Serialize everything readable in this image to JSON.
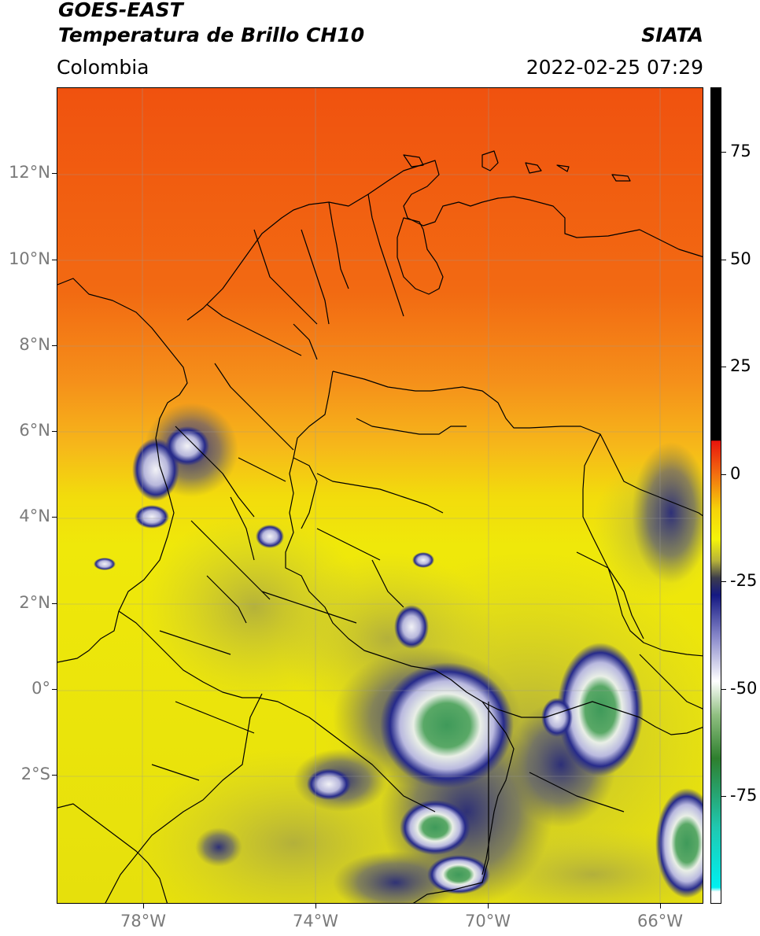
{
  "header": {
    "title_line1": "GOES-EAST",
    "title_line2": "Temperatura de Brillo CH10",
    "region": "Colombia",
    "brand": "SIATA",
    "timestamp": "2022-02-25 07:29"
  },
  "map": {
    "lon_range": [
      -80,
      -65
    ],
    "lat_range": [
      -5,
      14
    ],
    "lat_ticks": [
      {
        "lat": 12,
        "label": "12°N"
      },
      {
        "lat": 10,
        "label": "10°N"
      },
      {
        "lat": 8,
        "label": "8°N"
      },
      {
        "lat": 6,
        "label": "6°N"
      },
      {
        "lat": 4,
        "label": "4°N"
      },
      {
        "lat": 2,
        "label": "2°N"
      },
      {
        "lat": 0,
        "label": "0°"
      },
      {
        "lat": -2,
        "label": "2°S"
      }
    ],
    "lon_ticks": [
      {
        "lon": -78,
        "label": "78°W"
      },
      {
        "lon": -74,
        "label": "74°W"
      },
      {
        "lon": -70,
        "label": "70°W"
      },
      {
        "lon": -66,
        "label": "66°W"
      }
    ],
    "colors": {
      "warm_north": "#f25a10",
      "orange": "#f7961a",
      "yellow": "#f2e60a",
      "olive": "#cbc83a",
      "navy": "#1c1f80",
      "white_cloud": "#ececf2",
      "green_core": "#3a9a58"
    }
  },
  "colorbar": {
    "range": [
      -100,
      90
    ],
    "ticks": [
      {
        "value": 75,
        "label": "75"
      },
      {
        "value": 50,
        "label": "50"
      },
      {
        "value": 25,
        "label": "25"
      },
      {
        "value": 0,
        "label": "0"
      },
      {
        "value": -25,
        "label": "-25"
      },
      {
        "value": -50,
        "label": "-50"
      },
      {
        "value": -75,
        "label": "-75"
      }
    ],
    "stops": [
      {
        "value": 90,
        "color": "#000000"
      },
      {
        "value": 8,
        "color": "#000000"
      },
      {
        "value": 7.9,
        "color": "#e8140c"
      },
      {
        "value": 0,
        "color": "#f27010"
      },
      {
        "value": -8,
        "color": "#f5d20a"
      },
      {
        "value": -15,
        "color": "#f4f40a"
      },
      {
        "value": -20,
        "color": "#b6b23a"
      },
      {
        "value": -24,
        "color": "#3c3c4c"
      },
      {
        "value": -28,
        "color": "#141882"
      },
      {
        "value": -38,
        "color": "#8c8ccc"
      },
      {
        "value": -48,
        "color": "#ffffff"
      },
      {
        "value": -56,
        "color": "#8fbf80"
      },
      {
        "value": -66,
        "color": "#2e7f2e"
      },
      {
        "value": -82,
        "color": "#20c8b0"
      },
      {
        "value": -96,
        "color": "#00f0f0"
      },
      {
        "value": -97,
        "color": "#ffffff"
      },
      {
        "value": -100,
        "color": "#ffffff"
      }
    ]
  }
}
